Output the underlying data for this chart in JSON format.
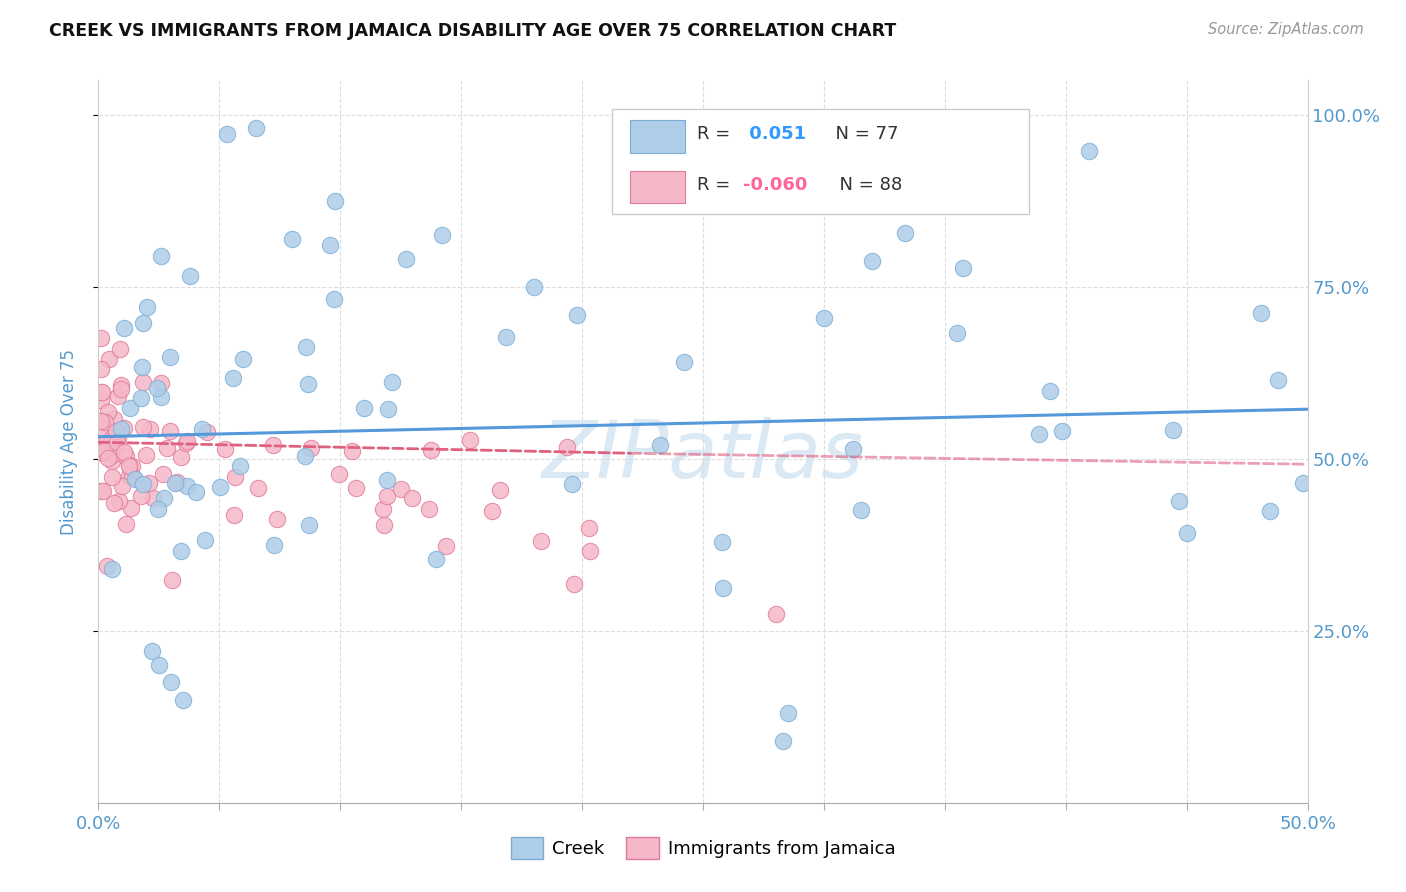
{
  "title": "CREEK VS IMMIGRANTS FROM JAMAICA DISABILITY AGE OVER 75 CORRELATION CHART",
  "source": "Source: ZipAtlas.com",
  "ylabel": "Disability Age Over 75",
  "legend_creek": "Creek",
  "legend_jamaica": "Immigrants from Jamaica",
  "creek_R": "0.051",
  "creek_N": "77",
  "jamaica_R": "-0.060",
  "jamaica_N": "88",
  "xlim": [
    0.0,
    0.5
  ],
  "ylim": [
    0.0,
    1.05
  ],
  "yticks": [
    0.25,
    0.5,
    0.75,
    1.0
  ],
  "ytick_labels": [
    "25.0%",
    "50.0%",
    "75.0%",
    "100.0%"
  ],
  "xticks": [
    0.0,
    0.05,
    0.1,
    0.15,
    0.2,
    0.25,
    0.3,
    0.35,
    0.4,
    0.45,
    0.5
  ],
  "background_color": "#ffffff",
  "creek_color": "#aecde8",
  "creek_edge_color": "#7badd4",
  "jamaica_color": "#f5b8c8",
  "jamaica_edge_color": "#e07898",
  "trend_creek_color": "#5599dd",
  "trend_jamaica_color": "#e06080",
  "grid_color": "#dddddd",
  "title_color": "#111111",
  "axis_label_color": "#5599cc",
  "watermark_color": "#cce0f0",
  "creek_trend_x": [
    0.0,
    0.5
  ],
  "creek_trend_y": [
    0.532,
    0.572
  ],
  "jamaica_trend_x": [
    0.0,
    0.22
  ],
  "jamaica_trend_y": [
    0.524,
    0.508
  ]
}
